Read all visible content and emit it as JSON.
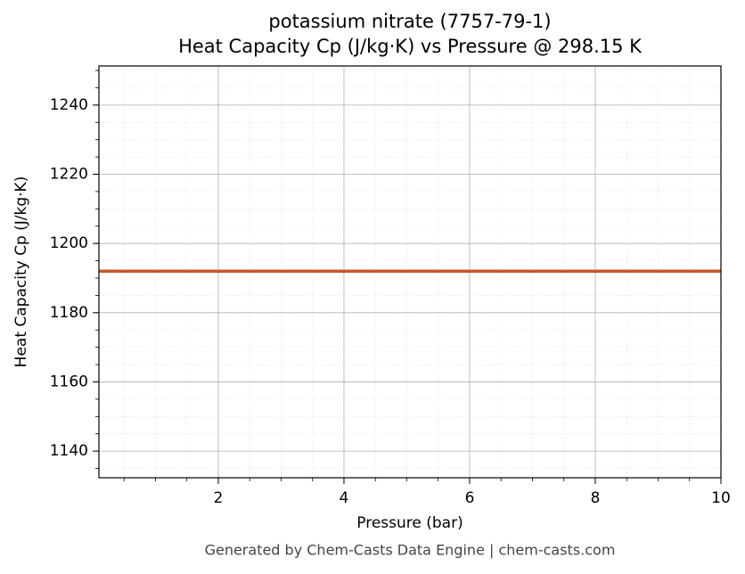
{
  "chart_data": {
    "type": "line",
    "title": "potassium nitrate (7757-79-1)",
    "subtitle": "Heat Capacity Cp (J/kg·K) vs Pressure @ 298.15 K",
    "x_label": "Pressure (bar)",
    "y_label": "Heat Capacity Cp (J/kg·K)",
    "footer": "Generated by Chem-Casts Data Engine | chem-casts.com",
    "x": [
      0.1,
      10
    ],
    "series": [
      {
        "name": "potassium nitrate",
        "color": "#c8552b",
        "values": [
          1192,
          1192
        ]
      }
    ],
    "xlim": [
      0.1,
      10
    ],
    "xticks": [
      2,
      4,
      6,
      8,
      10
    ],
    "ylim": [
      1132.3,
      1251.3
    ],
    "yticks": [
      1140,
      1160,
      1180,
      1200,
      1220,
      1240
    ],
    "grid": true,
    "minor_grid": true
  }
}
